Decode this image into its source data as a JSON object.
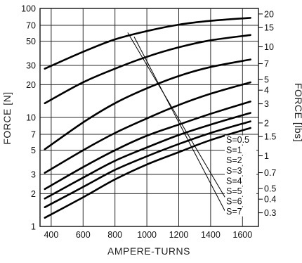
{
  "chart_data": {
    "type": "line",
    "xlabel": "AMPERE-TURNS",
    "ylabel": "FORCE [N]",
    "y2label": "FORCE [lbs]",
    "xlim": [
      330,
      1700
    ],
    "ylim": [
      1,
      100
    ],
    "yscale": "log",
    "grid": true,
    "x_ticks": [
      400,
      600,
      800,
      1000,
      1200,
      1400,
      1600
    ],
    "y_ticks": [
      1,
      2,
      3,
      5,
      7,
      10,
      20,
      30,
      50,
      70,
      100
    ],
    "y2_ticks": [
      {
        "label": "0.3",
        "lbs": 0.3
      },
      {
        "label": "0.4",
        "lbs": 0.4
      },
      {
        "label": "0.5",
        "lbs": 0.5
      },
      {
        "label": "0.7",
        "lbs": 0.7
      },
      {
        "label": "1",
        "lbs": 1
      },
      {
        "label": "1.5",
        "lbs": 1.5
      },
      {
        "label": "2",
        "lbs": 2
      },
      {
        "label": "3",
        "lbs": 3
      },
      {
        "label": "4",
        "lbs": 4
      },
      {
        "label": "5",
        "lbs": 5
      },
      {
        "label": "7",
        "lbs": 7
      },
      {
        "label": "10",
        "lbs": 10
      },
      {
        "label": "15",
        "lbs": 15
      },
      {
        "label": "20",
        "lbs": 20
      }
    ],
    "series": [
      {
        "name": "S=0.5",
        "x": [
          360,
          600,
          800,
          1000,
          1200,
          1400,
          1650
        ],
        "y": [
          28,
          40,
          52,
          62,
          71,
          77,
          82
        ]
      },
      {
        "name": "S=1",
        "x": [
          360,
          600,
          800,
          1000,
          1200,
          1400,
          1650
        ],
        "y": [
          13.5,
          21,
          28,
          36,
          44,
          51,
          57
        ]
      },
      {
        "name": "S=2",
        "x": [
          360,
          600,
          800,
          1000,
          1200,
          1400,
          1650
        ],
        "y": [
          5.1,
          9,
          13.5,
          18.5,
          24,
          29,
          34
        ]
      },
      {
        "name": "S=3",
        "x": [
          360,
          600,
          800,
          1000,
          1200,
          1400,
          1650
        ],
        "y": [
          3.1,
          5,
          7.2,
          9.8,
          13,
          16.5,
          21
        ]
      },
      {
        "name": "S=4",
        "x": [
          360,
          600,
          800,
          1000,
          1200,
          1400,
          1650
        ],
        "y": [
          2.2,
          3.5,
          5,
          6.8,
          8.6,
          10.8,
          14
        ]
      },
      {
        "name": "S=5",
        "x": [
          360,
          600,
          800,
          1000,
          1200,
          1400,
          1650
        ],
        "y": [
          1.8,
          2.8,
          4,
          5.3,
          6.9,
          8.6,
          11
        ]
      },
      {
        "name": "S=6",
        "x": [
          360,
          600,
          800,
          1000,
          1200,
          1400,
          1650
        ],
        "y": [
          1.5,
          2.3,
          3.3,
          4.4,
          5.7,
          7.2,
          9.2
        ]
      },
      {
        "name": "S=7",
        "x": [
          360,
          600,
          800,
          1000,
          1200,
          1400,
          1650
        ],
        "y": [
          1.2,
          1.85,
          2.7,
          3.7,
          4.8,
          6.2,
          8
        ]
      }
    ],
    "leaders": [
      {
        "from": [
          880,
          60
        ],
        "to": [
          1500,
          1.75
        ]
      },
      {
        "from": [
          920,
          55
        ],
        "to": [
          1500,
          1.3
        ]
      }
    ]
  }
}
